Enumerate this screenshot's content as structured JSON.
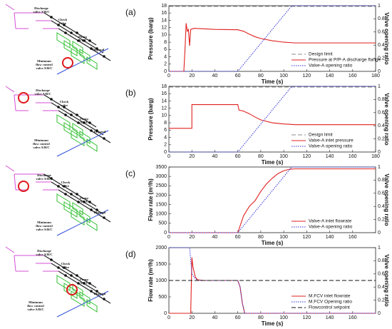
{
  "chart_data": [
    {
      "type": "line",
      "panel_label": "(a)",
      "ylabel": "Pressure (barg)",
      "y2label": "Valve opening ratio",
      "xlabel": "Time (s)",
      "xlim": [
        0,
        180
      ],
      "xticks": [
        0,
        20,
        40,
        60,
        80,
        100,
        120,
        140,
        160,
        180
      ],
      "ylim": [
        0,
        18
      ],
      "yticks": [
        0,
        2,
        4,
        6,
        8,
        10,
        12,
        14,
        16,
        18
      ],
      "y2lim": [
        0,
        1
      ],
      "y2ticks": [
        0,
        0.2,
        0.4,
        0.6,
        0.8,
        1
      ],
      "legend": "lower right",
      "series": [
        {
          "name": "Design limit",
          "color": "#8c8c8c",
          "dash": "dashed",
          "x": [
            0,
            180
          ],
          "values": [
            17.8,
            17.8
          ]
        },
        {
          "name": "Pressure at P/P-A discharge flange",
          "color": "#e0201e",
          "dash": "solid",
          "x": [
            0,
            13,
            14,
            15,
            16,
            17,
            18,
            19,
            20,
            22,
            40,
            60,
            65,
            70,
            75,
            80,
            90,
            100,
            110,
            120,
            140,
            160,
            180
          ],
          "values": [
            0,
            0,
            6,
            13.2,
            11,
            11.5,
            7,
            11.5,
            11.6,
            11.8,
            11.5,
            11.4,
            11,
            10.2,
            9.5,
            9,
            8.4,
            8,
            7.8,
            7.8,
            7.8,
            7.8,
            7.8
          ]
        },
        {
          "name": "Valve-A opening ratio",
          "color": "#3b3bd8",
          "dash": "dotted",
          "axis": "y2",
          "x": [
            0,
            60,
            107,
            180
          ],
          "values": [
            0,
            0,
            1,
            1
          ]
        }
      ]
    },
    {
      "type": "line",
      "panel_label": "(b)",
      "ylabel": "Pressure (barg)",
      "y2label": "Valve opening ratio",
      "xlabel": "Time (s)",
      "xlim": [
        0,
        180
      ],
      "xticks": [
        0,
        20,
        40,
        60,
        80,
        100,
        120,
        140,
        160,
        180
      ],
      "ylim": [
        0,
        18
      ],
      "yticks": [
        0,
        2,
        4,
        6,
        8,
        10,
        12,
        14,
        16,
        18
      ],
      "y2lim": [
        0,
        1
      ],
      "y2ticks": [
        0,
        0.2,
        0.4,
        0.6,
        0.8,
        1
      ],
      "legend": "lower right",
      "series": [
        {
          "name": "Design limit",
          "color": "#8c8c8c",
          "dash": "dashed",
          "x": [
            0,
            180
          ],
          "values": [
            17.8,
            17.8
          ]
        },
        {
          "name": "Valve-A inlet pressure",
          "color": "#e0201e",
          "dash": "solid",
          "x": [
            0,
            20,
            20,
            60,
            61,
            65,
            70,
            75,
            80,
            90,
            100,
            110,
            180
          ],
          "values": [
            6.5,
            6.5,
            13,
            13,
            11.5,
            11.2,
            10.5,
            9.6,
            8.8,
            8,
            7.7,
            7.5,
            7.5
          ]
        },
        {
          "name": "Valve-A opening ratio",
          "color": "#3b3bd8",
          "dash": "dotted",
          "axis": "y2",
          "x": [
            0,
            60,
            107,
            180
          ],
          "values": [
            0,
            0,
            1,
            1
          ]
        }
      ]
    },
    {
      "type": "line",
      "panel_label": "(c)",
      "ylabel": "Flow rate (m³/h)",
      "y2label": "Valve opening ratio",
      "xlabel": "Time (s)",
      "xlim": [
        0,
        180
      ],
      "xticks": [
        0,
        20,
        40,
        60,
        80,
        100,
        120,
        140,
        160
      ],
      "ylim": [
        0,
        3500
      ],
      "yticks": [
        0,
        500,
        1000,
        1500,
        2000,
        2500,
        3000,
        3500
      ],
      "y2lim": [
        0,
        1
      ],
      "y2ticks": [
        0,
        0.2,
        0.4,
        0.6,
        0.8,
        1
      ],
      "legend": "lower right",
      "series": [
        {
          "name": "Valve-A inlet flowrate",
          "color": "#e0201e",
          "dash": "solid",
          "x": [
            0,
            60,
            65,
            70,
            75,
            80,
            85,
            90,
            95,
            100,
            105,
            110,
            180
          ],
          "values": [
            0,
            0,
            900,
            1400,
            1700,
            2200,
            2600,
            2900,
            3150,
            3300,
            3380,
            3400,
            3400
          ]
        },
        {
          "name": "Valve-A opening ratio",
          "color": "#3b3bd8",
          "dash": "dotted",
          "axis": "y2",
          "x": [
            0,
            60,
            107,
            180
          ],
          "values": [
            0,
            0,
            1,
            1
          ]
        }
      ]
    },
    {
      "type": "line",
      "panel_label": "(d)",
      "ylabel": "Flow rate (m³/h)",
      "y2label": "Valve opening ratio",
      "xlabel": "Time (s)",
      "xlim": [
        0,
        180
      ],
      "xticks": [
        0,
        20,
        40,
        60,
        80,
        100,
        120,
        140,
        160
      ],
      "ylim": [
        0,
        2000
      ],
      "yticks": [
        0,
        500,
        1000,
        1500,
        2000
      ],
      "y2lim": [
        0,
        1
      ],
      "y2ticks": [
        0,
        0.2,
        0.4,
        0.6,
        0.8,
        1
      ],
      "legend": "lower right",
      "series": [
        {
          "name": "M.FCV inlet flowrate",
          "color": "#e0201e",
          "dash": "solid",
          "x": [
            0,
            19,
            20,
            21,
            23,
            25,
            30,
            60,
            62,
            64,
            66,
            180
          ],
          "values": [
            0,
            0,
            1700,
            1400,
            1100,
            1020,
            1000,
            1000,
            800,
            300,
            0,
            0
          ]
        },
        {
          "name": "M.FCV Opening ratio",
          "color": "#3b3bd8",
          "dash": "dotted",
          "axis": "y2",
          "x": [
            0,
            18,
            20,
            22,
            25,
            30,
            60,
            62,
            64,
            66,
            180
          ],
          "values": [
            1,
            1,
            0.6,
            0.55,
            0.5,
            0.5,
            0.5,
            0.4,
            0.15,
            0,
            0
          ]
        },
        {
          "name": "Flowcontrol setpoint",
          "color": "#111111",
          "dash": "dashed",
          "x": [
            0,
            180
          ],
          "values": [
            1000,
            1000
          ]
        }
      ]
    }
  ],
  "schematics": [
    {
      "labels": [
        {
          "lines": [
            "Discharge",
            "valve A/B/C"
          ]
        },
        {
          "lines": [
            "Check",
            "valve"
          ]
        },
        {
          "lines": [
            "Pump",
            "A/B/C"
          ]
        },
        {
          "lines": [
            "Disposal"
          ]
        },
        {
          "lines": [
            "Minimum",
            "flow control",
            "valve A/B/C"
          ]
        }
      ]
    },
    {
      "labels": [
        {
          "lines": [
            "Discharge",
            "valve A/B/C"
          ]
        },
        {
          "lines": [
            "Check",
            "valve"
          ]
        },
        {
          "lines": [
            "Pump",
            "A/B/C"
          ]
        },
        {
          "lines": [
            "Disposal"
          ]
        },
        {
          "lines": [
            "Minimum",
            "flow control",
            "valve A/B/C"
          ]
        }
      ]
    },
    {
      "labels": [
        {
          "lines": [
            "Discharge",
            "valve A/B/C"
          ]
        },
        {
          "lines": [
            "Check",
            "valve"
          ]
        },
        {
          "lines": [
            "Pump",
            "A/B/C"
          ]
        },
        {
          "lines": [
            "Disposal"
          ]
        },
        {
          "lines": [
            "Minimum",
            "flow control",
            "valve A/B/C"
          ]
        }
      ]
    },
    {
      "labels": [
        {
          "lines": [
            "Discharge",
            "valve A/B/C"
          ]
        },
        {
          "lines": [
            "Check",
            "valve"
          ]
        },
        {
          "lines": [
            "Pump",
            "A/B/C"
          ]
        },
        {
          "lines": [
            "Disposal"
          ]
        },
        {
          "lines": [
            "Minimum",
            "flow control",
            "valve A/B/C"
          ]
        }
      ]
    }
  ]
}
